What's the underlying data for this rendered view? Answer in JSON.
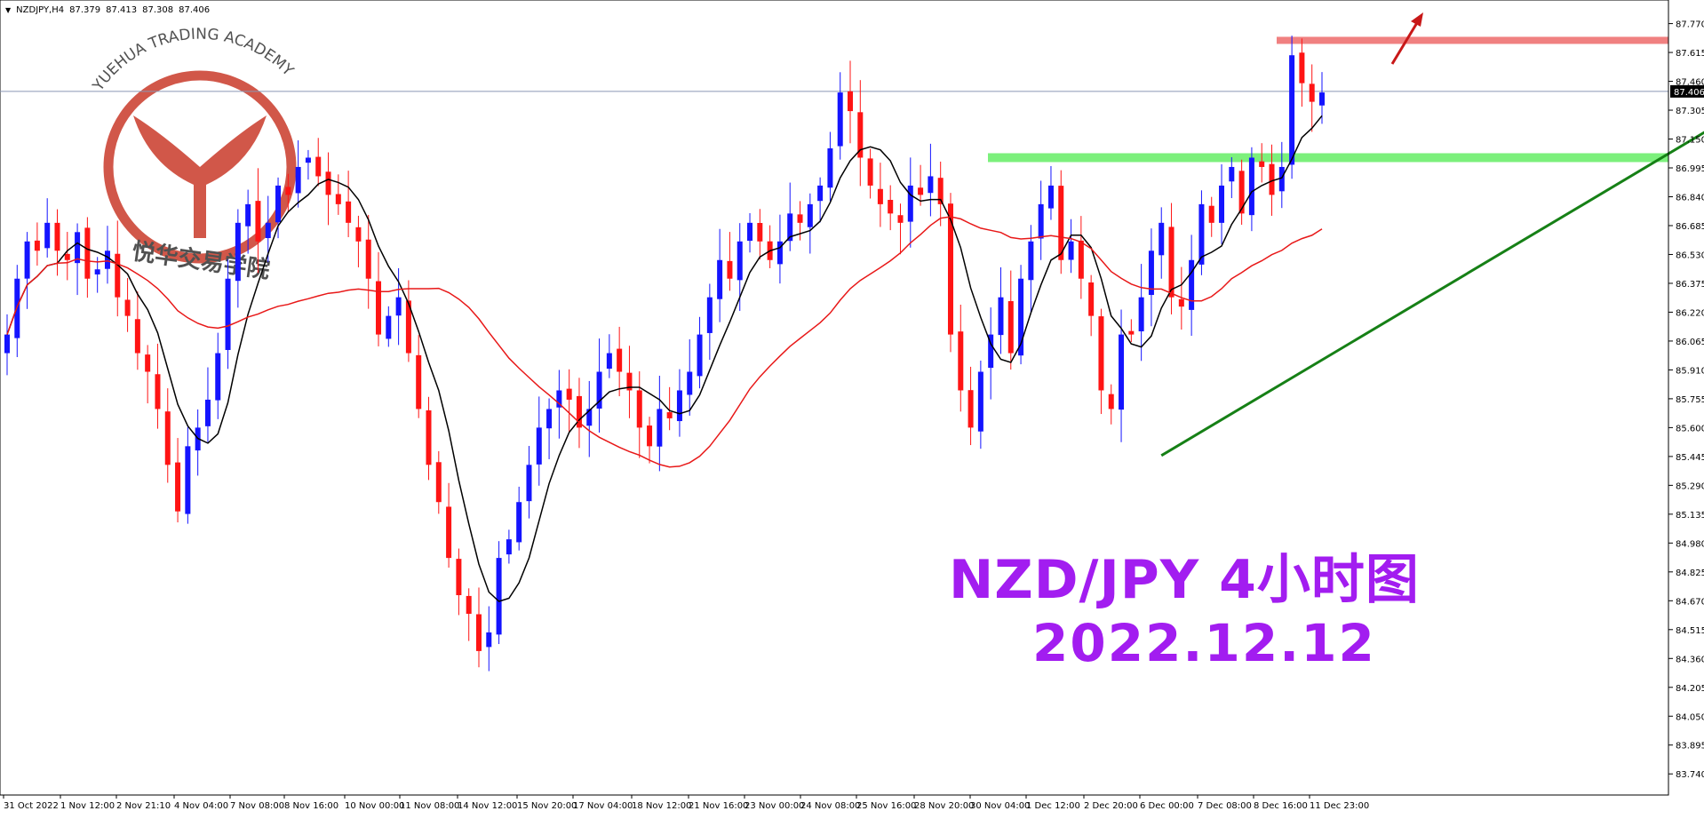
{
  "header": {
    "symbol": "NZDJPY,H4",
    "ohlc": [
      "87.379",
      "87.413",
      "87.308",
      "87.406"
    ]
  },
  "overlay": {
    "title": "NZD/JPY 4小时图",
    "date": "2022.12.12"
  },
  "logo": {
    "arc_text": "YUEHUA TRADING ACADEMY",
    "cn_text": "悦华交易学院"
  },
  "colors": {
    "bull": "#1414ff",
    "bear": "#ff1414",
    "ma_fast": "#000000",
    "ma_slow": "#e81818",
    "resistance": "#f08080",
    "support": "#7cf07c",
    "trendline": "#168016",
    "arrow": "#c81818",
    "text_accent": "#a21df0"
  },
  "chart_data": {
    "type": "candlestick",
    "title": "NZD/JPY 4小时图",
    "subtitle": "2022.12.12",
    "ylim": [
      83.66,
      87.83
    ],
    "y_ticks": [
      "87.770",
      "87.615",
      "87.460",
      "87.305",
      "87.150",
      "86.995",
      "86.840",
      "86.685",
      "86.530",
      "86.375",
      "86.220",
      "86.065",
      "85.910",
      "85.755",
      "85.600",
      "85.445",
      "85.290",
      "85.135",
      "84.980",
      "84.825",
      "84.670",
      "84.515",
      "84.360",
      "84.205",
      "84.050",
      "83.895",
      "83.740"
    ],
    "x_labels": [
      "31 Oct 2022",
      "1 Nov 12:00",
      "2 Nov 21:10",
      "4 Nov 04:00",
      "7 Nov 08:00",
      "8 Nov 16:00",
      "10 Nov 00:00",
      "11 Nov 08:00",
      "14 Nov 12:00",
      "15 Nov 20:00",
      "17 Nov 04:00",
      "18 Nov 12:00",
      "21 Nov 16:00",
      "23 Nov 00:00",
      "24 Nov 08:00",
      "25 Nov 16:00",
      "28 Nov 20:00",
      "30 Nov 04:00",
      "1 Dec 12:00",
      "2 Dec 20:00",
      "6 Dec 00:00",
      "7 Dec 08:00",
      "8 Dec 16:00",
      "11 Dec 23:00"
    ],
    "current_price": "87.406",
    "closes": [
      86.1,
      86.4,
      86.6,
      86.55,
      86.7,
      86.55,
      86.5,
      86.65,
      86.4,
      86.45,
      86.55,
      86.3,
      86.2,
      86.0,
      85.9,
      85.7,
      85.4,
      85.15,
      85.5,
      85.6,
      85.75,
      86.0,
      86.4,
      86.7,
      86.8,
      86.6,
      86.7,
      86.9,
      86.85,
      87.0,
      87.05,
      86.95,
      86.85,
      86.8,
      86.7,
      86.6,
      86.4,
      86.1,
      86.2,
      86.3,
      86.0,
      85.7,
      85.4,
      85.2,
      84.9,
      84.7,
      84.6,
      84.4,
      84.5,
      84.9,
      85.0,
      85.2,
      85.4,
      85.6,
      85.7,
      85.8,
      85.75,
      85.6,
      85.7,
      85.9,
      86.0,
      85.9,
      85.8,
      85.6,
      85.5,
      85.7,
      85.65,
      85.8,
      85.9,
      86.1,
      86.3,
      86.5,
      86.4,
      86.6,
      86.7,
      86.6,
      86.5,
      86.6,
      86.75,
      86.7,
      86.8,
      86.9,
      87.1,
      87.4,
      87.3,
      87.05,
      86.9,
      86.8,
      86.75,
      86.7,
      86.9,
      86.85,
      86.95,
      86.8,
      86.1,
      85.8,
      85.6,
      85.9,
      86.1,
      86.3,
      86.0,
      86.4,
      86.6,
      86.8,
      86.9,
      86.5,
      86.6,
      86.4,
      86.2,
      85.8,
      85.7,
      86.1,
      86.1,
      86.3,
      86.55,
      86.7,
      86.3,
      86.25,
      86.5,
      86.8,
      86.7,
      86.9,
      87.0,
      86.75,
      87.05,
      87.0,
      86.85,
      87.0,
      87.6,
      87.45,
      87.35,
      87.4
    ]
  },
  "annotations": {
    "resistance_level": 87.68,
    "support_level": 87.05,
    "trendline": {
      "from_bar": 115,
      "from_price": 85.45,
      "to_bar": 182,
      "to_price": 87.6
    }
  }
}
